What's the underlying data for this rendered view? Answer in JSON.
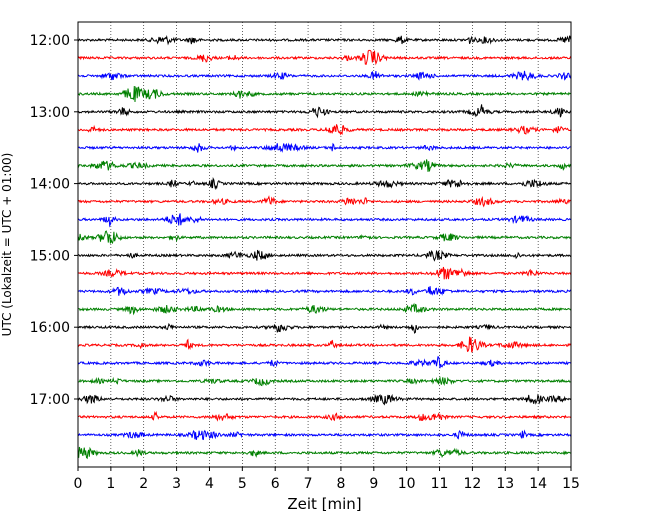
{
  "chart_data": {
    "type": "line",
    "subtype": "seismogram-helicorder",
    "title": "",
    "xlabel": "Zeit  [min]",
    "ylabel": "UTC (Lokalzeit = UTC + 01:00)",
    "xlim": [
      0,
      15
    ],
    "x_ticks": [
      "0",
      "1",
      "2",
      "3",
      "4",
      "5",
      "6",
      "7",
      "8",
      "9",
      "10",
      "11",
      "12",
      "13",
      "14",
      "15"
    ],
    "y_tick_labels": [
      "12:00",
      "13:00",
      "14:00",
      "15:00",
      "16:00",
      "17:00"
    ],
    "grid": "vertical dotted lines at each minute",
    "trace_interval_minutes": 15,
    "trace_color_cycle": [
      "#000000",
      "#ff0000",
      "#0000ff",
      "#008000"
    ],
    "traces": [
      {
        "start": "12:00",
        "color": "#000000"
      },
      {
        "start": "12:15",
        "color": "#ff0000"
      },
      {
        "start": "12:30",
        "color": "#0000ff"
      },
      {
        "start": "12:45",
        "color": "#008000"
      },
      {
        "start": "13:00",
        "color": "#000000"
      },
      {
        "start": "13:15",
        "color": "#ff0000"
      },
      {
        "start": "13:30",
        "color": "#0000ff"
      },
      {
        "start": "13:45",
        "color": "#008000"
      },
      {
        "start": "14:00",
        "color": "#000000"
      },
      {
        "start": "14:15",
        "color": "#ff0000"
      },
      {
        "start": "14:30",
        "color": "#0000ff"
      },
      {
        "start": "14:45",
        "color": "#008000"
      },
      {
        "start": "15:00",
        "color": "#000000"
      },
      {
        "start": "15:15",
        "color": "#ff0000"
      },
      {
        "start": "15:30",
        "color": "#0000ff"
      },
      {
        "start": "15:45",
        "color": "#008000"
      },
      {
        "start": "16:00",
        "color": "#000000"
      },
      {
        "start": "16:15",
        "color": "#ff0000"
      },
      {
        "start": "16:30",
        "color": "#0000ff"
      },
      {
        "start": "16:45",
        "color": "#008000"
      },
      {
        "start": "17:00",
        "color": "#000000"
      },
      {
        "start": "17:15",
        "color": "#ff0000"
      },
      {
        "start": "17:30",
        "color": "#0000ff"
      },
      {
        "start": "17:45",
        "color": "#008000"
      }
    ]
  }
}
